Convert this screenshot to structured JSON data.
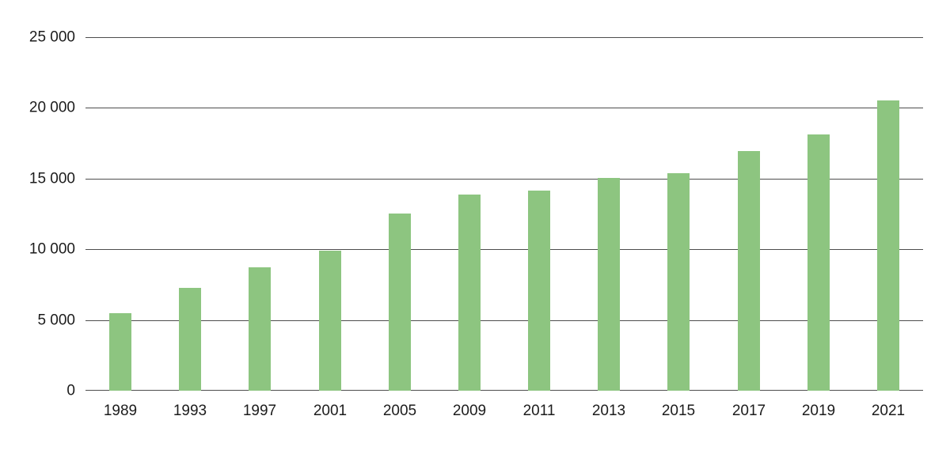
{
  "chart_data": {
    "type": "bar",
    "title": "",
    "xlabel": "",
    "ylabel": "",
    "categories": [
      "1989",
      "1993",
      "1997",
      "2001",
      "2005",
      "2009",
      "2011",
      "2013",
      "2015",
      "2017",
      "2019",
      "2021"
    ],
    "values": [
      5500,
      7280,
      8700,
      9900,
      12500,
      13850,
      14150,
      15050,
      15400,
      16950,
      18100,
      20500
    ],
    "ylim": [
      0,
      25000
    ],
    "ytick_interval": 5000,
    "yticks": [
      {
        "value": 0,
        "label": "0"
      },
      {
        "value": 5000,
        "label": "5 000"
      },
      {
        "value": 10000,
        "label": "10 000"
      },
      {
        "value": 15000,
        "label": "15 000"
      },
      {
        "value": 20000,
        "label": "20 000"
      },
      {
        "value": 25000,
        "label": "25 000"
      }
    ],
    "grid": true,
    "legend": false,
    "colors": {
      "bar": "#8dc580",
      "gridline": "#4d4d4d",
      "text": "#1c1c1c",
      "background": "#ffffff"
    }
  }
}
